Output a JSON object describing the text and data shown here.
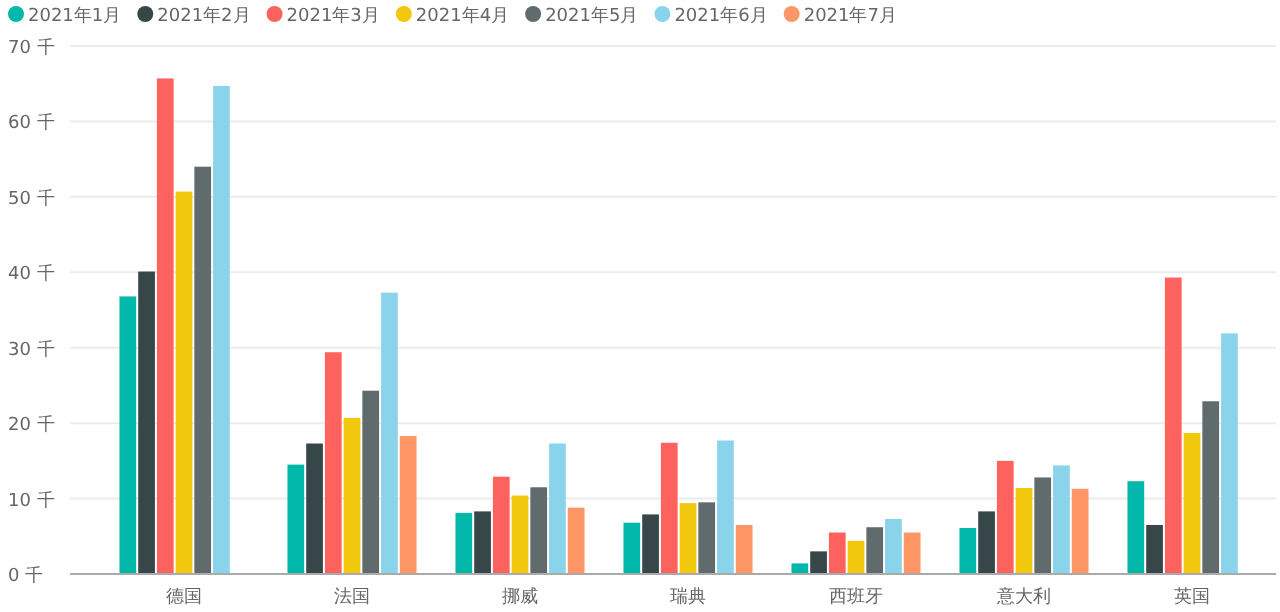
{
  "chart_data": {
    "type": "bar",
    "categories": [
      "德国",
      "法国",
      "挪威",
      "瑞典",
      "西班牙",
      "意大利",
      "英国"
    ],
    "series": [
      {
        "name": "2021年1月",
        "color": "#01b8aa",
        "values": [
          36.8,
          14.5,
          8.1,
          6.8,
          1.4,
          6.1,
          12.3
        ]
      },
      {
        "name": "2021年2月",
        "color": "#374649",
        "values": [
          40.1,
          17.3,
          8.3,
          7.9,
          3.0,
          8.3,
          6.5
        ]
      },
      {
        "name": "2021年3月",
        "color": "#fd625e",
        "values": [
          65.7,
          29.4,
          12.9,
          17.4,
          5.5,
          15.0,
          39.3
        ]
      },
      {
        "name": "2021年4月",
        "color": "#f2c80f",
        "values": [
          50.7,
          20.7,
          10.4,
          9.4,
          4.4,
          11.4,
          18.7
        ]
      },
      {
        "name": "2021年5月",
        "color": "#5f6b6d",
        "values": [
          54.0,
          24.3,
          11.5,
          9.5,
          6.2,
          12.8,
          22.9
        ]
      },
      {
        "name": "2021年6月",
        "color": "#8ad4eb",
        "values": [
          64.7,
          37.3,
          17.3,
          17.7,
          7.3,
          14.4,
          31.9
        ]
      },
      {
        "name": "2021年7月",
        "color": "#fe9666",
        "values": [
          null,
          18.3,
          8.8,
          6.5,
          5.5,
          11.3,
          null
        ]
      }
    ],
    "ylim": [
      0,
      70
    ],
    "yticks": [
      {
        "value": 0,
        "label": "0 千"
      },
      {
        "value": 10,
        "label": "10 千"
      },
      {
        "value": 20,
        "label": "20 千"
      },
      {
        "value": 30,
        "label": "30 千"
      },
      {
        "value": 40,
        "label": "40 千"
      },
      {
        "value": 50,
        "label": "50 千"
      },
      {
        "value": 60,
        "label": "60 千"
      },
      {
        "value": 70,
        "label": "70 千"
      }
    ],
    "grid": "y",
    "legend": "top left"
  }
}
